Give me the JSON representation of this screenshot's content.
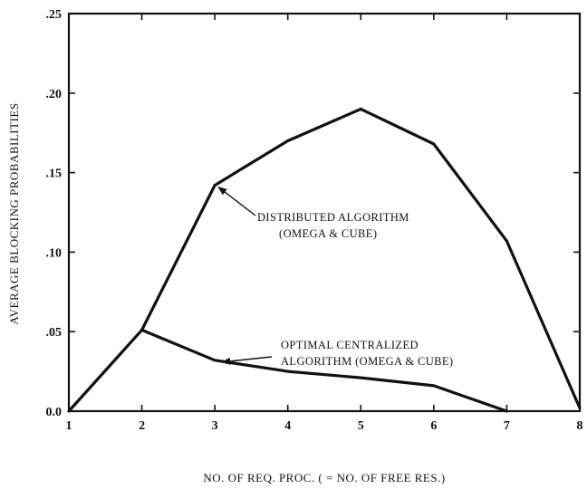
{
  "chart_data": {
    "type": "line",
    "title": "",
    "xlabel": "NO. OF REQ. PROC. ( = NO. OF FREE RES.)",
    "ylabel": "AVERAGE BLOCKING PROBABILITIES",
    "xlim": [
      1,
      8
    ],
    "ylim": [
      0,
      0.25
    ],
    "x_ticks": [
      "1",
      "2",
      "3",
      "4",
      "5",
      "6",
      "7",
      "8"
    ],
    "y_ticks": [
      "0.0",
      ".05",
      ".10",
      ".15",
      ".20",
      ".25"
    ],
    "grid": false,
    "series": [
      {
        "name": "DISTRIBUTED ALGORITHM (OMEGA & CUBE)",
        "x": [
          1,
          2,
          3,
          4,
          5,
          6,
          7,
          8
        ],
        "y": [
          0.0,
          0.051,
          0.142,
          0.17,
          0.19,
          0.168,
          0.107,
          0.002
        ]
      },
      {
        "name": "OPTIMAL CENTRALIZED ALGORITHM (OMEGA & CUBE)",
        "x": [
          2,
          3,
          4,
          5,
          6,
          7
        ],
        "y": [
          0.051,
          0.032,
          0.025,
          0.021,
          0.016,
          0.0
        ]
      }
    ],
    "annotations": [
      {
        "lines": [
          "DISTRIBUTED ALGORITHM",
          "(OMEGA & CUBE)"
        ],
        "points_to": [
          3,
          0.142
        ]
      },
      {
        "lines": [
          "OPTIMAL CENTRALIZED",
          "ALGORITHM (OMEGA & CUBE)"
        ],
        "points_to": [
          3.05,
          0.032
        ]
      }
    ]
  }
}
